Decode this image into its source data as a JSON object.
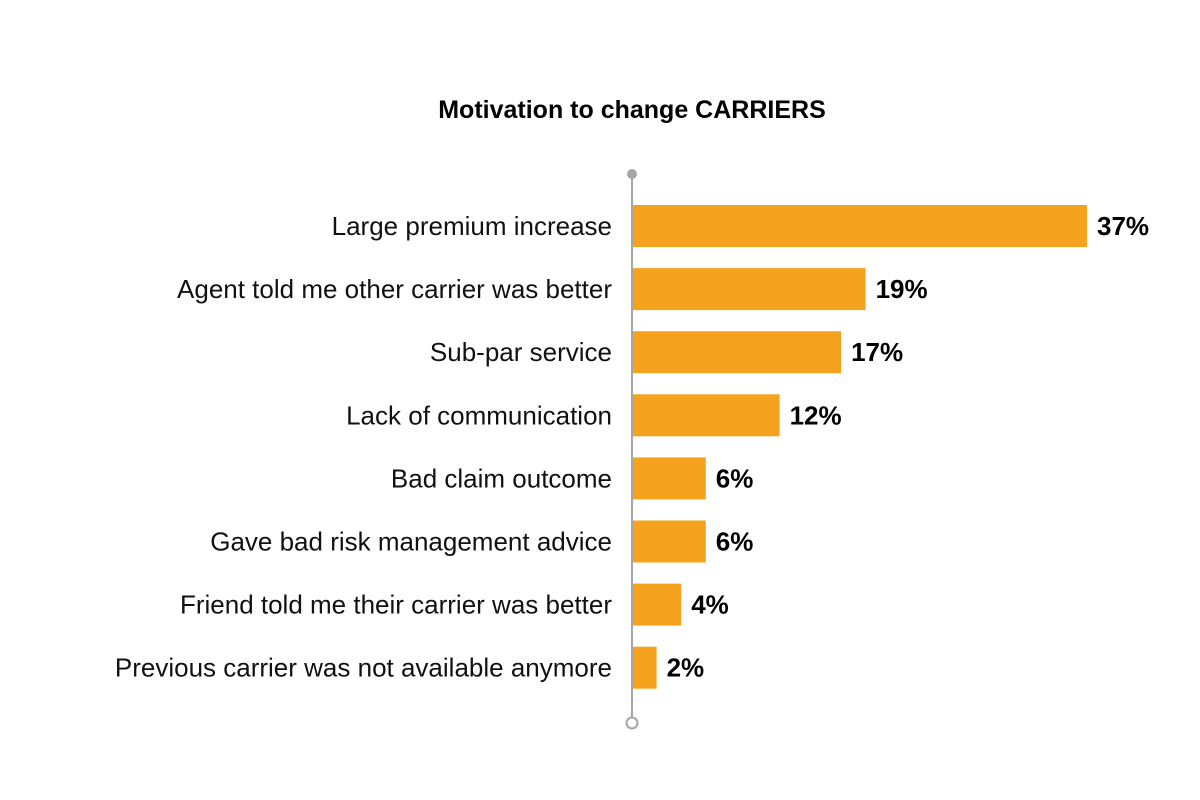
{
  "chart_data": {
    "type": "bar",
    "orientation": "horizontal",
    "title": "Motivation to change CARRIERS",
    "categories": [
      "Large premium increase",
      "Agent told me other carrier was better",
      "Sub-par service",
      "Lack of communication",
      "Bad claim outcome",
      "Gave bad risk management advice",
      "Friend told me their carrier was better",
      "Previous carrier was not available anymore"
    ],
    "values": [
      37,
      19,
      17,
      12,
      6,
      6,
      4,
      2
    ],
    "value_labels": [
      "37%",
      "19%",
      "17%",
      "12%",
      "6%",
      "6%",
      "4%",
      "2%"
    ],
    "unit": "%",
    "xlabel": "",
    "ylabel": "",
    "xlim": [
      0,
      37
    ],
    "grid": false,
    "legend": "none",
    "bar_color": "#F5A31F",
    "axis_color": "#A6A6A6"
  }
}
